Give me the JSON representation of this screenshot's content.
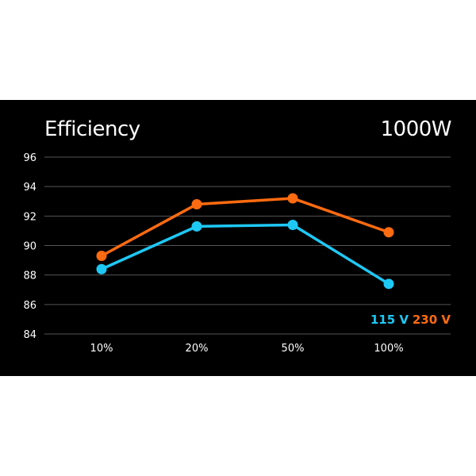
{
  "header": {
    "title": "Efficiency",
    "wattage": "1000W"
  },
  "colors": {
    "background": "#000000",
    "grid": "#555555",
    "series_115": "#1ec8f5",
    "series_230": "#ff6b10"
  },
  "chart_data": {
    "type": "line",
    "title": "Efficiency",
    "categories": [
      "10%",
      "20%",
      "50%",
      "100%"
    ],
    "y_ticks": [
      "96",
      "94",
      "92",
      "90",
      "88",
      "86",
      "84"
    ],
    "ylim": [
      84,
      96
    ],
    "grid": true,
    "legend_position": "bottom-right",
    "series": [
      {
        "name": "115 V",
        "values": [
          88.4,
          91.3,
          91.4,
          87.4
        ]
      },
      {
        "name": "230 V",
        "values": [
          89.3,
          92.8,
          93.2,
          90.9
        ]
      }
    ]
  }
}
